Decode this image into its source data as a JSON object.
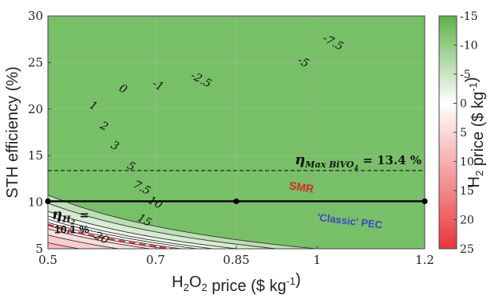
{
  "chart_data": {
    "type": "heatmap",
    "x_axis": {
      "label": "H2O2 price ($ kg-1)",
      "range": [
        0.5,
        1.2
      ],
      "ticks": [
        0.5,
        0.7,
        0.85,
        1,
        1.2
      ],
      "tick_labels": [
        "0.5",
        "0.7",
        "0.85",
        "1",
        "1.2"
      ]
    },
    "y_axis": {
      "label": "STH efficiency (%)",
      "range": [
        5,
        30
      ],
      "ticks": [
        5,
        10,
        15,
        20,
        25,
        30
      ],
      "tick_labels": [
        "5",
        "10",
        "15",
        "20",
        "25",
        "30"
      ]
    },
    "colorbar": {
      "label": "H2 price ($ kg-1)",
      "range": [
        -15,
        25
      ],
      "ticks": [
        -15,
        -10,
        -5,
        0,
        5,
        10,
        15,
        20,
        25
      ],
      "tick_labels": [
        "-15",
        "-10",
        "-5",
        "0",
        "5",
        "10",
        "15",
        "20",
        "25"
      ],
      "colors": {
        "negative": "#5db34a",
        "zero": "#ffffff",
        "positive": "#e8363a"
      }
    },
    "contour_levels": [
      -7.5,
      -5,
      -2.5,
      -1,
      0,
      1,
      2,
      3,
      5,
      7.5,
      10,
      15,
      20
    ],
    "contour_labels": [
      {
        "text": "-7.5",
        "x": 1.03,
        "y": 27.2
      },
      {
        "text": "-5",
        "x": 0.975,
        "y": 25.1
      },
      {
        "text": "-2.5",
        "x": 0.785,
        "y": 23.2
      },
      {
        "text": "-1",
        "x": 0.705,
        "y": 22.6
      },
      {
        "text": "0",
        "x": 0.64,
        "y": 22.2
      },
      {
        "text": "1",
        "x": 0.585,
        "y": 20.4
      },
      {
        "text": "2",
        "x": 0.605,
        "y": 18.2
      },
      {
        "text": "3",
        "x": 0.625,
        "y": 16.1
      },
      {
        "text": "5",
        "x": 0.655,
        "y": 13.9
      },
      {
        "text": "7.5",
        "x": 0.675,
        "y": 11.6
      },
      {
        "text": "10",
        "x": 0.7,
        "y": 10.0
      },
      {
        "text": "15",
        "x": 0.68,
        "y": 8.1
      },
      {
        "text": "20",
        "x": 0.6,
        "y": 6.2
      }
    ],
    "reference_lines": [
      {
        "label": "ηMax BiVO4 = 13.4 %",
        "y": 13.4,
        "style": "dashed",
        "color": "#222222"
      },
      {
        "label": "SMR",
        "h2_price": 1.7,
        "style": "dashed",
        "color": "#d62a2a",
        "label_x": 0.97,
        "label_y": 11.2
      },
      {
        "label": "'Classic' PEC",
        "h2_price": 10.4,
        "style": "dashed",
        "color": "#3a46c9",
        "label_x": 1.06,
        "label_y": 7.6
      }
    ],
    "operating_line": {
      "label_main": "ηH2 =",
      "label_value": "10.1 %",
      "y": 10.1,
      "points_x": [
        0.5,
        0.85,
        1.2
      ]
    }
  }
}
